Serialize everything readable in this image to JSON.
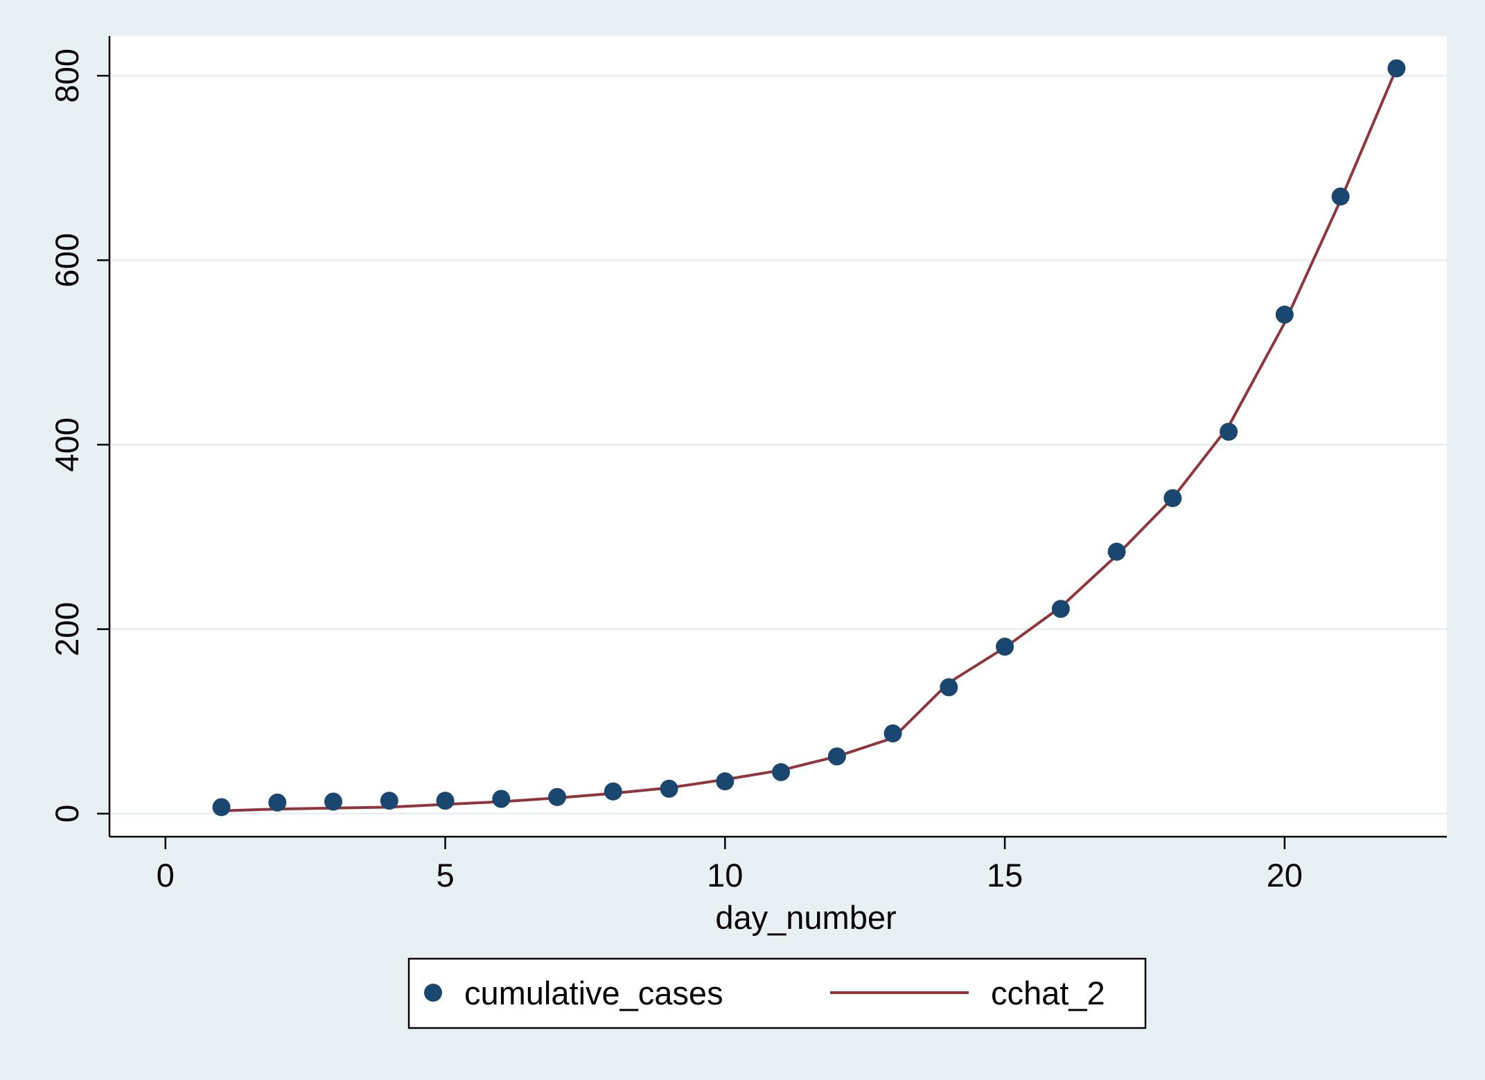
{
  "chart_data": {
    "type": "scatter",
    "title": "",
    "xlabel": "day_number",
    "ylabel": "",
    "xlim": [
      -1,
      22.9
    ],
    "ylim": [
      -25,
      843
    ],
    "x_ticks": [
      0,
      5,
      10,
      15,
      20
    ],
    "y_ticks": [
      0,
      200,
      400,
      600,
      800
    ],
    "grid": "horizontal",
    "legend_position": "bottom",
    "x": [
      1,
      2,
      3,
      4,
      5,
      6,
      7,
      8,
      9,
      10,
      11,
      12,
      13,
      14,
      15,
      16,
      17,
      18,
      19,
      20,
      21,
      22
    ],
    "series": [
      {
        "name": "cumulative_cases",
        "style": "markers",
        "color": "#1a476f",
        "values": [
          7,
          12,
          13,
          14,
          14,
          16,
          18,
          24,
          27,
          35,
          45,
          62,
          87,
          137,
          181,
          222,
          284,
          342,
          414,
          541,
          669,
          808
        ]
      },
      {
        "name": "cchat_2",
        "style": "line",
        "color": "#90353b",
        "values": [
          3,
          5,
          6,
          7,
          10,
          13,
          17,
          22,
          28,
          37,
          47,
          62,
          82,
          142,
          180,
          224,
          280,
          342,
          420,
          532,
          665,
          808
        ]
      }
    ]
  },
  "colors": {
    "background": "#e8f0f4",
    "plot_area": "#ffffff",
    "grid": "#e8f0f4",
    "marker": "#1a476f",
    "line": "#90353b"
  }
}
